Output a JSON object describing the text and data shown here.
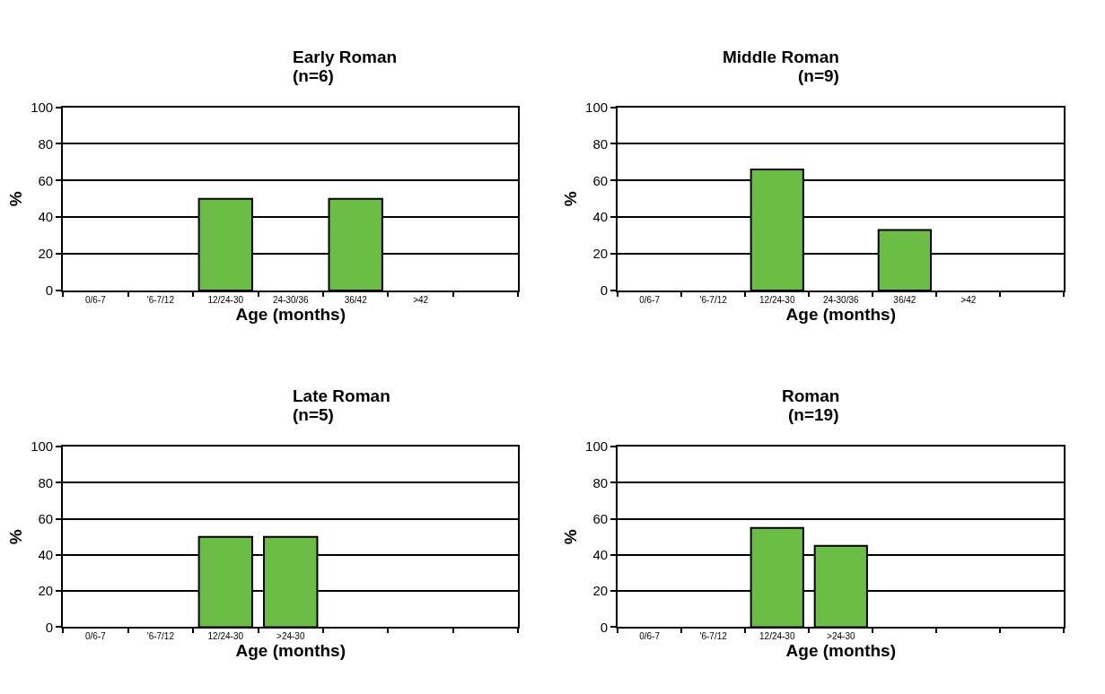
{
  "chart_data": [
    {
      "type": "bar",
      "title": "Early Roman",
      "subtitle": "(n=6)",
      "xlabel": "Age (months)",
      "ylabel": "%",
      "categories": [
        "0/6-7",
        "'6-7/12",
        "12/24-30",
        "24-30/36",
        "36/42",
        ">42",
        null
      ],
      "values": [
        null,
        null,
        50,
        null,
        50,
        null,
        null
      ],
      "color": "#6cbd45",
      "ylim": [
        0,
        100
      ],
      "yticks": [
        0,
        20,
        40,
        60,
        80,
        100
      ],
      "grid": "y"
    },
    {
      "type": "bar",
      "title": "Middle Roman",
      "subtitle": "(n=9)",
      "xlabel": "Age (months)",
      "ylabel": "%",
      "categories": [
        "0/6-7",
        "'6-7/12",
        "12/24-30",
        "24-30/36",
        "36/42",
        ">42",
        null
      ],
      "values": [
        null,
        null,
        66,
        null,
        33,
        null,
        null
      ],
      "color": "#6cbd45",
      "ylim": [
        0,
        100
      ],
      "yticks": [
        0,
        20,
        40,
        60,
        80,
        100
      ],
      "grid": "y"
    },
    {
      "type": "bar",
      "title": "Late Roman",
      "subtitle": "(n=5)",
      "xlabel": "Age (months)",
      "ylabel": "%",
      "categories": [
        "0/6-7",
        "'6-7/12",
        "12/24-30",
        ">24-30",
        null,
        null,
        null
      ],
      "values": [
        null,
        null,
        50,
        50,
        null,
        null,
        null
      ],
      "color": "#6cbd45",
      "ylim": [
        0,
        100
      ],
      "yticks": [
        0,
        20,
        40,
        60,
        80,
        100
      ],
      "grid": "y"
    },
    {
      "type": "bar",
      "title": "Roman",
      "subtitle": "(n=19)",
      "xlabel": "Age (months)",
      "ylabel": "%",
      "categories": [
        "0/6-7",
        "'6-7/12",
        "12/24-30",
        ">24-30",
        null,
        null,
        null
      ],
      "values": [
        null,
        null,
        55,
        45,
        null,
        null,
        null
      ],
      "color": "#6cbd45",
      "ylim": [
        0,
        100
      ],
      "yticks": [
        0,
        20,
        40,
        60,
        80,
        100
      ],
      "grid": "y"
    }
  ]
}
